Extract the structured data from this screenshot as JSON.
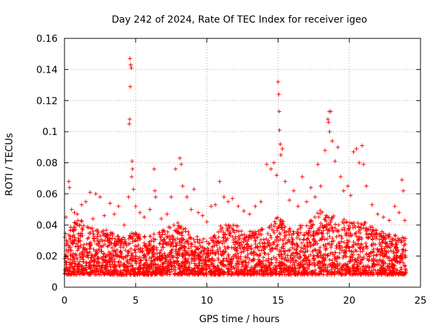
{
  "chart_data": {
    "type": "scatter",
    "title": "Day 242 of 2024, Rate Of TEC Index for receiver igeo",
    "xlabel": "GPS time / hours",
    "ylabel": "ROTI / TECUs",
    "xlim": [
      0,
      25
    ],
    "ylim": [
      0,
      0.16
    ],
    "x_ticks": [
      0,
      5,
      10,
      15,
      20,
      25
    ],
    "x_tick_labels": [
      "0",
      "5",
      "10",
      "15",
      "20",
      "25"
    ],
    "y_ticks": [
      0,
      0.02,
      0.04,
      0.06,
      0.08,
      0.1,
      0.12,
      0.14,
      0.16
    ],
    "y_tick_labels": [
      "0",
      "0.02",
      "0.04",
      "0.06",
      "0.08",
      "0.1",
      "0.12",
      "0.14",
      "0.16"
    ],
    "grid": true,
    "marker": "plus",
    "colors": {
      "points": "#ff0000",
      "grid": "#a0a0a0",
      "axes": "#000000"
    },
    "series": [
      {
        "name": "ROTI",
        "points": [
          [
            0.1,
            0.045
          ],
          [
            0.3,
            0.068
          ],
          [
            0.35,
            0.064
          ],
          [
            0.5,
            0.05
          ],
          [
            0.7,
            0.048
          ],
          [
            0.9,
            0.047
          ],
          [
            1.2,
            0.053
          ],
          [
            1.5,
            0.055
          ],
          [
            1.8,
            0.061
          ],
          [
            2.0,
            0.044
          ],
          [
            2.2,
            0.06
          ],
          [
            2.5,
            0.058
          ],
          [
            2.8,
            0.046
          ],
          [
            3.2,
            0.054
          ],
          [
            3.5,
            0.047
          ],
          [
            3.8,
            0.052
          ],
          [
            4.2,
            0.04
          ],
          [
            4.5,
            0.058
          ],
          [
            4.6,
            0.147
          ],
          [
            4.65,
            0.143
          ],
          [
            4.7,
            0.141
          ],
          [
            4.62,
            0.129
          ],
          [
            4.58,
            0.108
          ],
          [
            4.55,
            0.105
          ],
          [
            4.75,
            0.081
          ],
          [
            4.78,
            0.076
          ],
          [
            4.72,
            0.071
          ],
          [
            4.85,
            0.063
          ],
          [
            5.0,
            0.052
          ],
          [
            5.3,
            0.048
          ],
          [
            5.6,
            0.045
          ],
          [
            6.0,
            0.05
          ],
          [
            6.3,
            0.076
          ],
          [
            6.35,
            0.062
          ],
          [
            6.4,
            0.058
          ],
          [
            6.8,
            0.044
          ],
          [
            7.2,
            0.047
          ],
          [
            7.5,
            0.058
          ],
          [
            7.8,
            0.076
          ],
          [
            8.1,
            0.083
          ],
          [
            8.2,
            0.079
          ],
          [
            8.3,
            0.065
          ],
          [
            8.6,
            0.058
          ],
          [
            8.9,
            0.05
          ],
          [
            9.1,
            0.063
          ],
          [
            9.4,
            0.048
          ],
          [
            9.7,
            0.046
          ],
          [
            10.0,
            0.042
          ],
          [
            10.3,
            0.052
          ],
          [
            10.6,
            0.053
          ],
          [
            10.9,
            0.068
          ],
          [
            11.2,
            0.058
          ],
          [
            11.5,
            0.055
          ],
          [
            11.8,
            0.057
          ],
          [
            12.2,
            0.052
          ],
          [
            12.6,
            0.049
          ],
          [
            13.0,
            0.047
          ],
          [
            13.4,
            0.052
          ],
          [
            13.8,
            0.055
          ],
          [
            14.2,
            0.079
          ],
          [
            14.5,
            0.076
          ],
          [
            14.7,
            0.08
          ],
          [
            14.9,
            0.072
          ],
          [
            15.0,
            0.132
          ],
          [
            15.05,
            0.124
          ],
          [
            15.08,
            0.113
          ],
          [
            15.1,
            0.101
          ],
          [
            15.15,
            0.092
          ],
          [
            15.2,
            0.085
          ],
          [
            15.3,
            0.089
          ],
          [
            15.5,
            0.068
          ],
          [
            15.8,
            0.056
          ],
          [
            16.1,
            0.062
          ],
          [
            16.4,
            0.052
          ],
          [
            16.7,
            0.071
          ],
          [
            17.0,
            0.055
          ],
          [
            17.3,
            0.064
          ],
          [
            17.6,
            0.058
          ],
          [
            17.8,
            0.079
          ],
          [
            18.0,
            0.065
          ],
          [
            18.3,
            0.088
          ],
          [
            18.5,
            0.108
          ],
          [
            18.55,
            0.106
          ],
          [
            18.6,
            0.113
          ],
          [
            18.7,
            0.113
          ],
          [
            18.62,
            0.1
          ],
          [
            18.8,
            0.094
          ],
          [
            19.0,
            0.081
          ],
          [
            19.2,
            0.09
          ],
          [
            19.4,
            0.071
          ],
          [
            19.6,
            0.062
          ],
          [
            19.9,
            0.065
          ],
          [
            20.1,
            0.059
          ],
          [
            20.3,
            0.087
          ],
          [
            20.5,
            0.089
          ],
          [
            20.7,
            0.08
          ],
          [
            20.9,
            0.091
          ],
          [
            21.0,
            0.079
          ],
          [
            21.2,
            0.065
          ],
          [
            21.6,
            0.053
          ],
          [
            22.0,
            0.047
          ],
          [
            22.4,
            0.045
          ],
          [
            22.8,
            0.043
          ],
          [
            23.2,
            0.052
          ],
          [
            23.5,
            0.048
          ],
          [
            23.7,
            0.069
          ],
          [
            23.8,
            0.062
          ],
          [
            23.9,
            0.043
          ]
        ],
        "dense_band": {
          "comment": "thousands of overlapping markers form a solid band; values derived from the visible envelope",
          "x_range": [
            0,
            24
          ],
          "baseline_range": [
            0.008,
            0.03
          ],
          "upper_envelope": [
            [
              0,
              0.035
            ],
            [
              1,
              0.045
            ],
            [
              2,
              0.038
            ],
            [
              3,
              0.037
            ],
            [
              4,
              0.032
            ],
            [
              5,
              0.036
            ],
            [
              6,
              0.034
            ],
            [
              7,
              0.037
            ],
            [
              8,
              0.042
            ],
            [
              9,
              0.035
            ],
            [
              10,
              0.03
            ],
            [
              11,
              0.041
            ],
            [
              12,
              0.04
            ],
            [
              13,
              0.036
            ],
            [
              14,
              0.04
            ],
            [
              15,
              0.045
            ],
            [
              16,
              0.038
            ],
            [
              17,
              0.041
            ],
            [
              18,
              0.05
            ],
            [
              19,
              0.046
            ],
            [
              20,
              0.042
            ],
            [
              21,
              0.044
            ],
            [
              22,
              0.037
            ],
            [
              23,
              0.034
            ],
            [
              24,
              0.032
            ]
          ]
        }
      }
    ]
  }
}
